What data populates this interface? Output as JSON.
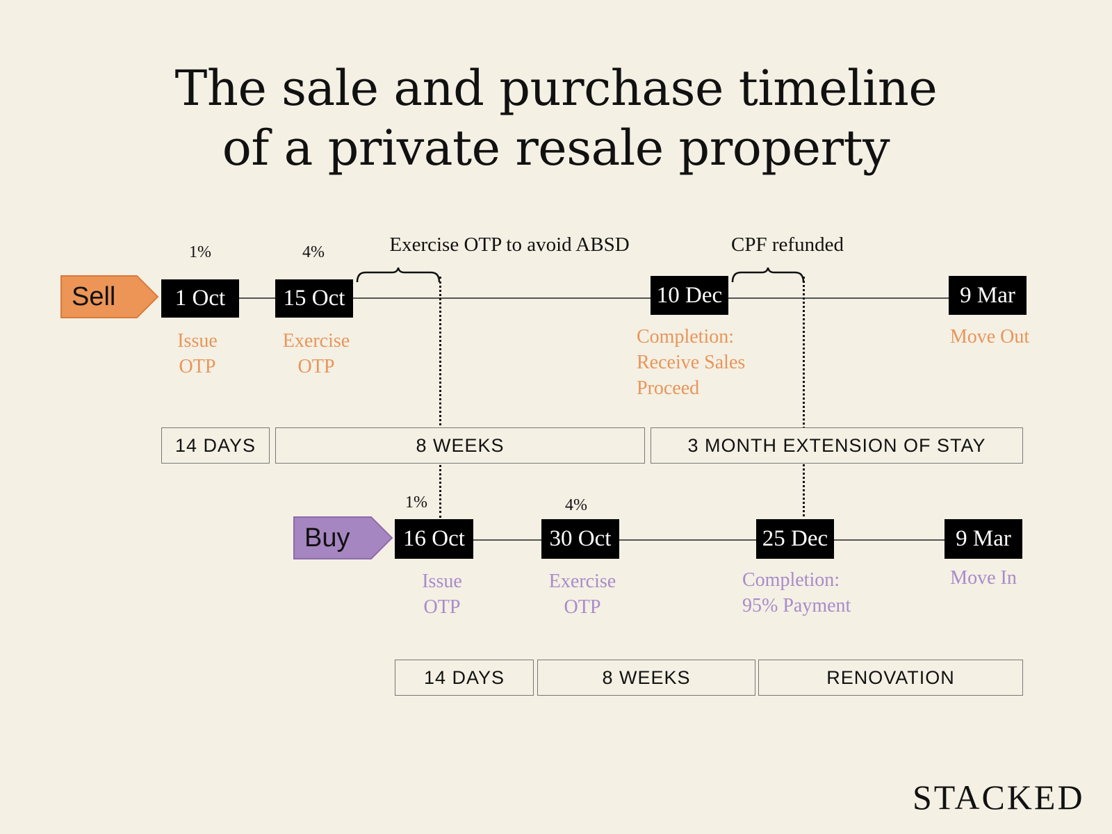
{
  "title": {
    "line1": "The sale and purchase timeline",
    "line2": "of a private resale property"
  },
  "colors": {
    "background": "#f4f0e4",
    "sell": "#ec9557",
    "buy": "#a686c0",
    "sell_text": "#e8955a",
    "buy_text": "#a98bc9"
  },
  "annotations": {
    "exercise_note": "Exercise OTP to avoid ABSD",
    "cpf_note": "CPF refunded"
  },
  "sell": {
    "tag": "Sell",
    "milestones": [
      {
        "date": "1 Oct",
        "pct": "1%",
        "label1": "Issue",
        "label2": "OTP"
      },
      {
        "date": "15 Oct",
        "pct": "4%",
        "label1": "Exercise",
        "label2": "OTP"
      },
      {
        "date": "10 Dec",
        "label1": "Completion:",
        "label2": "Receive Sales",
        "label3": "Proceed"
      },
      {
        "date": "9 Mar",
        "label1": "Move Out"
      }
    ],
    "durations": [
      "14 DAYS",
      "8 WEEKS",
      "3 MONTH EXTENSION OF STAY"
    ]
  },
  "buy": {
    "tag": "Buy",
    "milestones": [
      {
        "date": "16 Oct",
        "pct": "1%",
        "label1": "Issue",
        "label2": "OTP"
      },
      {
        "date": "30 Oct",
        "pct": "4%",
        "label1": "Exercise",
        "label2": "OTP"
      },
      {
        "date": "25 Dec",
        "label1": "Completion:",
        "label2": "95% Payment"
      },
      {
        "date": "9 Mar",
        "label1": "Move In"
      }
    ],
    "durations": [
      "14 DAYS",
      "8 WEEKS",
      "RENOVATION"
    ]
  },
  "logo": "STACKED"
}
